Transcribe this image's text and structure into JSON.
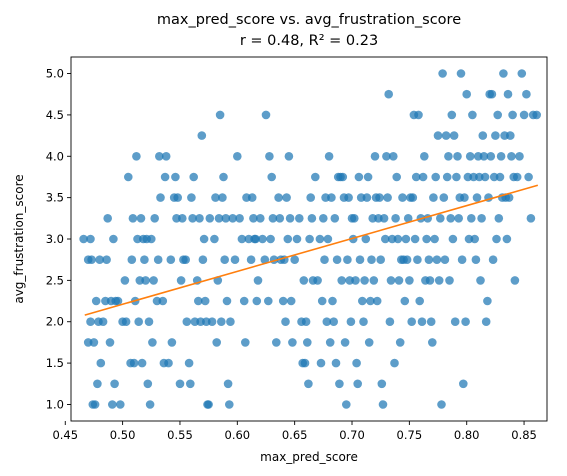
{
  "chart_data": {
    "type": "scatter",
    "title_line1": "max_pred_score vs. avg_frustration_score",
    "title_line2": "r = 0.48,  R² = 0.23",
    "xlabel": "max_pred_score",
    "ylabel": "avg_frustration_score",
    "xlim": [
      0.455,
      0.87
    ],
    "ylim": [
      0.8,
      5.2
    ],
    "xticks": [
      "0.45",
      "0.50",
      "0.55",
      "0.60",
      "0.65",
      "0.70",
      "0.75",
      "0.80",
      "0.85"
    ],
    "yticks": [
      "1.0",
      "1.5",
      "2.0",
      "2.5",
      "3.0",
      "3.5",
      "4.0",
      "4.5",
      "5.0"
    ],
    "grid": false,
    "point_color": "#1f77b4",
    "fit_color": "#ff7f0e",
    "fit_line": {
      "x": [
        0.467,
        0.862
      ],
      "y": [
        2.08,
        3.65
      ]
    },
    "points": [
      [
        0.466,
        3.0
      ],
      [
        0.47,
        2.75
      ],
      [
        0.472,
        3.0
      ],
      [
        0.473,
        2.75
      ],
      [
        0.47,
        1.75
      ],
      [
        0.472,
        2.0
      ],
      [
        0.474,
        1.0
      ],
      [
        0.476,
        1.0
      ],
      [
        0.475,
        1.75
      ],
      [
        0.477,
        2.25
      ],
      [
        0.478,
        1.25
      ],
      [
        0.479,
        2.0
      ],
      [
        0.48,
        2.75
      ],
      [
        0.481,
        1.5
      ],
      [
        0.483,
        2.0
      ],
      [
        0.485,
        2.25
      ],
      [
        0.486,
        2.75
      ],
      [
        0.487,
        3.25
      ],
      [
        0.489,
        1.75
      ],
      [
        0.49,
        2.25
      ],
      [
        0.491,
        1.0
      ],
      [
        0.492,
        3.0
      ],
      [
        0.493,
        1.25
      ],
      [
        0.494,
        2.25
      ],
      [
        0.496,
        2.25
      ],
      [
        0.498,
        1.0
      ],
      [
        0.5,
        2.0
      ],
      [
        0.502,
        2.5
      ],
      [
        0.503,
        2.0
      ],
      [
        0.505,
        3.75
      ],
      [
        0.507,
        1.5
      ],
      [
        0.508,
        2.75
      ],
      [
        0.509,
        3.25
      ],
      [
        0.51,
        1.5
      ],
      [
        0.511,
        2.25
      ],
      [
        0.512,
        4.0
      ],
      [
        0.513,
        3.0
      ],
      [
        0.514,
        2.0
      ],
      [
        0.515,
        2.5
      ],
      [
        0.516,
        3.25
      ],
      [
        0.517,
        1.5
      ],
      [
        0.518,
        3.0
      ],
      [
        0.519,
        2.75
      ],
      [
        0.52,
        2.5
      ],
      [
        0.521,
        3.0
      ],
      [
        0.522,
        1.25
      ],
      [
        0.523,
        2.0
      ],
      [
        0.524,
        1.0
      ],
      [
        0.525,
        3.0
      ],
      [
        0.526,
        1.75
      ],
      [
        0.527,
        2.5
      ],
      [
        0.528,
        3.25
      ],
      [
        0.53,
        2.25
      ],
      [
        0.531,
        2.75
      ],
      [
        0.532,
        4.0
      ],
      [
        0.533,
        3.5
      ],
      [
        0.535,
        2.25
      ],
      [
        0.536,
        1.5
      ],
      [
        0.537,
        3.75
      ],
      [
        0.538,
        4.0
      ],
      [
        0.54,
        1.5
      ],
      [
        0.542,
        2.75
      ],
      [
        0.543,
        1.75
      ],
      [
        0.545,
        3.5
      ],
      [
        0.546,
        3.75
      ],
      [
        0.547,
        3.25
      ],
      [
        0.548,
        3.5
      ],
      [
        0.55,
        1.25
      ],
      [
        0.551,
        2.5
      ],
      [
        0.552,
        3.25
      ],
      [
        0.553,
        2.75
      ],
      [
        0.555,
        2.75
      ],
      [
        0.556,
        2.0
      ],
      [
        0.558,
        1.5
      ],
      [
        0.559,
        1.25
      ],
      [
        0.56,
        3.5
      ],
      [
        0.561,
        3.25
      ],
      [
        0.562,
        3.75
      ],
      [
        0.563,
        2.0
      ],
      [
        0.565,
        2.5
      ],
      [
        0.566,
        2.25
      ],
      [
        0.567,
        3.25
      ],
      [
        0.568,
        2.0
      ],
      [
        0.569,
        4.25
      ],
      [
        0.57,
        2.75
      ],
      [
        0.571,
        3.0
      ],
      [
        0.572,
        2.25
      ],
      [
        0.573,
        2.0
      ],
      [
        0.574,
        1.0
      ],
      [
        0.575,
        1.0
      ],
      [
        0.576,
        3.25
      ],
      [
        0.578,
        2.0
      ],
      [
        0.58,
        3.0
      ],
      [
        0.581,
        3.5
      ],
      [
        0.582,
        1.75
      ],
      [
        0.583,
        2.5
      ],
      [
        0.584,
        3.25
      ],
      [
        0.585,
        4.5
      ],
      [
        0.586,
        2.0
      ],
      [
        0.587,
        3.5
      ],
      [
        0.588,
        3.75
      ],
      [
        0.589,
        2.75
      ],
      [
        0.59,
        3.25
      ],
      [
        0.591,
        2.25
      ],
      [
        0.592,
        1.25
      ],
      [
        0.593,
        1.0
      ],
      [
        0.594,
        2.0
      ],
      [
        0.596,
        3.25
      ],
      [
        0.598,
        2.75
      ],
      [
        0.6,
        4.0
      ],
      [
        0.602,
        3.25
      ],
      [
        0.604,
        3.0
      ],
      [
        0.606,
        2.25
      ],
      [
        0.607,
        1.75
      ],
      [
        0.608,
        3.5
      ],
      [
        0.61,
        3.0
      ],
      [
        0.612,
        2.75
      ],
      [
        0.613,
        3.5
      ],
      [
        0.614,
        3.25
      ],
      [
        0.615,
        3.0
      ],
      [
        0.616,
        3.0
      ],
      [
        0.617,
        2.25
      ],
      [
        0.618,
        2.5
      ],
      [
        0.62,
        3.25
      ],
      [
        0.622,
        3.0
      ],
      [
        0.624,
        2.75
      ],
      [
        0.625,
        4.5
      ],
      [
        0.627,
        2.25
      ],
      [
        0.628,
        4.0
      ],
      [
        0.629,
        3.0
      ],
      [
        0.63,
        3.75
      ],
      [
        0.631,
        3.25
      ],
      [
        0.632,
        2.75
      ],
      [
        0.634,
        1.75
      ],
      [
        0.636,
        3.5
      ],
      [
        0.637,
        3.25
      ],
      [
        0.638,
        2.75
      ],
      [
        0.64,
        2.25
      ],
      [
        0.641,
        2.75
      ],
      [
        0.642,
        2.0
      ],
      [
        0.643,
        3.5
      ],
      [
        0.644,
        3.0
      ],
      [
        0.645,
        4.0
      ],
      [
        0.646,
        3.25
      ],
      [
        0.647,
        2.25
      ],
      [
        0.648,
        1.75
      ],
      [
        0.65,
        2.75
      ],
      [
        0.652,
        3.0
      ],
      [
        0.654,
        3.25
      ],
      [
        0.656,
        2.0
      ],
      [
        0.657,
        1.5
      ],
      [
        0.658,
        2.5
      ],
      [
        0.659,
        1.5
      ],
      [
        0.66,
        2.0
      ],
      [
        0.661,
        1.75
      ],
      [
        0.662,
        1.25
      ],
      [
        0.663,
        3.0
      ],
      [
        0.664,
        3.5
      ],
      [
        0.665,
        3.25
      ],
      [
        0.666,
        2.5
      ],
      [
        0.668,
        3.75
      ],
      [
        0.67,
        2.5
      ],
      [
        0.672,
        3.0
      ],
      [
        0.673,
        1.5
      ],
      [
        0.674,
        2.25
      ],
      [
        0.675,
        3.25
      ],
      [
        0.676,
        2.75
      ],
      [
        0.677,
        3.5
      ],
      [
        0.678,
        2.0
      ],
      [
        0.679,
        3.0
      ],
      [
        0.68,
        4.0
      ],
      [
        0.681,
        1.75
      ],
      [
        0.682,
        3.5
      ],
      [
        0.683,
        2.25
      ],
      [
        0.684,
        2.0
      ],
      [
        0.685,
        3.25
      ],
      [
        0.686,
        1.5
      ],
      [
        0.687,
        2.75
      ],
      [
        0.688,
        3.75
      ],
      [
        0.689,
        1.25
      ],
      [
        0.69,
        3.75
      ],
      [
        0.691,
        2.5
      ],
      [
        0.692,
        3.75
      ],
      [
        0.693,
        3.5
      ],
      [
        0.694,
        1.75
      ],
      [
        0.695,
        1.0
      ],
      [
        0.696,
        2.75
      ],
      [
        0.697,
        3.5
      ],
      [
        0.698,
        2.5
      ],
      [
        0.699,
        2.0
      ],
      [
        0.7,
        3.25
      ],
      [
        0.701,
        3.0
      ],
      [
        0.702,
        3.25
      ],
      [
        0.703,
        2.5
      ],
      [
        0.704,
        1.5
      ],
      [
        0.705,
        1.25
      ],
      [
        0.706,
        3.75
      ],
      [
        0.707,
        2.75
      ],
      [
        0.708,
        3.5
      ],
      [
        0.709,
        2.25
      ],
      [
        0.71,
        2.0
      ],
      [
        0.711,
        2.5
      ],
      [
        0.712,
        3.0
      ],
      [
        0.713,
        3.5
      ],
      [
        0.714,
        3.75
      ],
      [
        0.715,
        1.75
      ],
      [
        0.716,
        2.25
      ],
      [
        0.717,
        2.75
      ],
      [
        0.718,
        3.25
      ],
      [
        0.719,
        2.5
      ],
      [
        0.72,
        4.0
      ],
      [
        0.721,
        3.5
      ],
      [
        0.722,
        2.25
      ],
      [
        0.723,
        3.25
      ],
      [
        0.724,
        3.5
      ],
      [
        0.725,
        2.75
      ],
      [
        0.726,
        1.25
      ],
      [
        0.727,
        1.0
      ],
      [
        0.728,
        3.25
      ],
      [
        0.729,
        3.0
      ],
      [
        0.73,
        4.0
      ],
      [
        0.731,
        3.5
      ],
      [
        0.732,
        4.75
      ],
      [
        0.733,
        2.0
      ],
      [
        0.734,
        2.5
      ],
      [
        0.735,
        3.0
      ],
      [
        0.736,
        4.0
      ],
      [
        0.737,
        1.5
      ],
      [
        0.738,
        3.25
      ],
      [
        0.739,
        3.75
      ],
      [
        0.74,
        3.0
      ],
      [
        0.741,
        2.5
      ],
      [
        0.742,
        1.75
      ],
      [
        0.743,
        2.75
      ],
      [
        0.744,
        3.5
      ],
      [
        0.745,
        2.75
      ],
      [
        0.746,
        2.25
      ],
      [
        0.747,
        3.0
      ],
      [
        0.748,
        2.75
      ],
      [
        0.749,
        3.25
      ],
      [
        0.75,
        2.5
      ],
      [
        0.751,
        3.5
      ],
      [
        0.752,
        2.0
      ],
      [
        0.753,
        3.5
      ],
      [
        0.754,
        4.5
      ],
      [
        0.755,
        3.0
      ],
      [
        0.756,
        3.75
      ],
      [
        0.757,
        2.75
      ],
      [
        0.758,
        4.5
      ],
      [
        0.759,
        2.25
      ],
      [
        0.76,
        3.25
      ],
      [
        0.761,
        2.0
      ],
      [
        0.762,
        3.75
      ],
      [
        0.763,
        4.0
      ],
      [
        0.764,
        2.5
      ],
      [
        0.765,
        3.0
      ],
      [
        0.766,
        3.25
      ],
      [
        0.767,
        2.75
      ],
      [
        0.768,
        2.5
      ],
      [
        0.769,
        2.0
      ],
      [
        0.77,
        1.75
      ],
      [
        0.771,
        3.5
      ],
      [
        0.772,
        3.0
      ],
      [
        0.773,
        3.75
      ],
      [
        0.774,
        2.75
      ],
      [
        0.775,
        4.25
      ],
      [
        0.776,
        2.5
      ],
      [
        0.777,
        3.25
      ],
      [
        0.778,
        1.0
      ],
      [
        0.779,
        5.0
      ],
      [
        0.78,
        3.5
      ],
      [
        0.781,
        2.75
      ],
      [
        0.782,
        4.25
      ],
      [
        0.783,
        3.75
      ],
      [
        0.784,
        4.0
      ],
      [
        0.785,
        2.5
      ],
      [
        0.786,
        3.25
      ],
      [
        0.787,
        4.5
      ],
      [
        0.788,
        3.0
      ],
      [
        0.789,
        4.25
      ],
      [
        0.79,
        2.0
      ],
      [
        0.791,
        3.75
      ],
      [
        0.792,
        4.0
      ],
      [
        0.793,
        3.25
      ],
      [
        0.794,
        3.5
      ],
      [
        0.795,
        5.0
      ],
      [
        0.796,
        2.75
      ],
      [
        0.797,
        1.25
      ],
      [
        0.798,
        3.5
      ],
      [
        0.799,
        2.0
      ],
      [
        0.8,
        4.75
      ],
      [
        0.801,
        3.75
      ],
      [
        0.802,
        3.0
      ],
      [
        0.803,
        4.0
      ],
      [
        0.804,
        3.25
      ],
      [
        0.805,
        4.5
      ],
      [
        0.806,
        3.75
      ],
      [
        0.807,
        3.0
      ],
      [
        0.808,
        2.75
      ],
      [
        0.809,
        3.5
      ],
      [
        0.81,
        4.0
      ],
      [
        0.811,
        3.75
      ],
      [
        0.812,
        2.5
      ],
      [
        0.813,
        3.25
      ],
      [
        0.814,
        4.25
      ],
      [
        0.815,
        4.0
      ],
      [
        0.816,
        3.75
      ],
      [
        0.817,
        2.0
      ],
      [
        0.818,
        2.25
      ],
      [
        0.819,
        3.5
      ],
      [
        0.82,
        4.75
      ],
      [
        0.821,
        4.0
      ],
      [
        0.822,
        4.75
      ],
      [
        0.823,
        2.75
      ],
      [
        0.824,
        3.75
      ],
      [
        0.825,
        4.25
      ],
      [
        0.826,
        3.0
      ],
      [
        0.827,
        4.5
      ],
      [
        0.828,
        3.25
      ],
      [
        0.829,
        3.75
      ],
      [
        0.83,
        4.0
      ],
      [
        0.831,
        3.5
      ],
      [
        0.832,
        5.0
      ],
      [
        0.833,
        4.25
      ],
      [
        0.834,
        3.5
      ],
      [
        0.835,
        3.0
      ],
      [
        0.836,
        4.75
      ],
      [
        0.837,
        3.5
      ],
      [
        0.838,
        4.25
      ],
      [
        0.839,
        4.0
      ],
      [
        0.84,
        4.5
      ],
      [
        0.841,
        3.75
      ],
      [
        0.842,
        2.5
      ],
      [
        0.844,
        3.75
      ],
      [
        0.846,
        4.0
      ],
      [
        0.848,
        5.0
      ],
      [
        0.85,
        4.5
      ],
      [
        0.852,
        4.75
      ],
      [
        0.854,
        3.75
      ],
      [
        0.856,
        3.25
      ],
      [
        0.858,
        4.5
      ],
      [
        0.861,
        4.5
      ]
    ]
  }
}
